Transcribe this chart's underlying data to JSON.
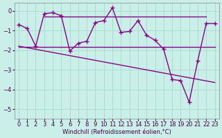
{
  "background_color": "#caeee8",
  "grid_color": "#aaddcc",
  "line_color": "#880088",
  "xlabel": "Windchill (Refroidissement éolien,°C)",
  "x_ticks": [
    0,
    1,
    2,
    3,
    4,
    5,
    6,
    7,
    8,
    9,
    10,
    11,
    12,
    13,
    14,
    15,
    16,
    17,
    18,
    19,
    20,
    21,
    22,
    23
  ],
  "y_ticks": [
    0,
    -1,
    -2,
    -3,
    -4,
    -5
  ],
  "ylim": [
    -5.5,
    0.4
  ],
  "xlim": [
    -0.5,
    23.5
  ],
  "series_main_x": [
    0,
    1,
    2,
    3,
    4,
    5,
    6,
    7,
    8,
    9,
    10,
    11,
    12,
    13,
    14,
    15,
    16,
    17,
    18,
    19,
    20,
    21,
    22,
    23
  ],
  "series_main_y": [
    -0.7,
    -0.9,
    -1.8,
    -0.15,
    -0.1,
    -0.25,
    -2.05,
    -1.65,
    -1.55,
    -0.6,
    -0.5,
    0.15,
    -1.1,
    -1.05,
    -0.5,
    -1.25,
    -1.5,
    -1.95,
    -3.5,
    -3.55,
    -4.65,
    -2.55,
    -0.65,
    -0.65
  ],
  "flat_line_x": [
    3,
    4,
    5,
    6,
    7,
    8,
    9,
    10,
    11,
    12,
    13,
    14,
    15,
    16,
    17,
    18,
    19,
    20,
    21,
    22
  ],
  "flat_line_y": [
    -0.28,
    -0.28,
    -0.28,
    -0.28,
    -0.28,
    -0.28,
    -0.28,
    -0.28,
    -0.28,
    -0.28,
    -0.28,
    -0.28,
    -0.28,
    -0.28,
    -0.28,
    -0.28,
    -0.28,
    -0.28,
    -0.28,
    -0.28
  ],
  "trend1_x": [
    0,
    23
  ],
  "trend1_y": [
    -1.85,
    -1.85
  ],
  "trend2_x": [
    0,
    23
  ],
  "trend2_y": [
    -1.8,
    -3.65
  ],
  "tick_fontsize": 6,
  "xlabel_fontsize": 6,
  "tick_color": "#440044",
  "spine_color": "#888888"
}
